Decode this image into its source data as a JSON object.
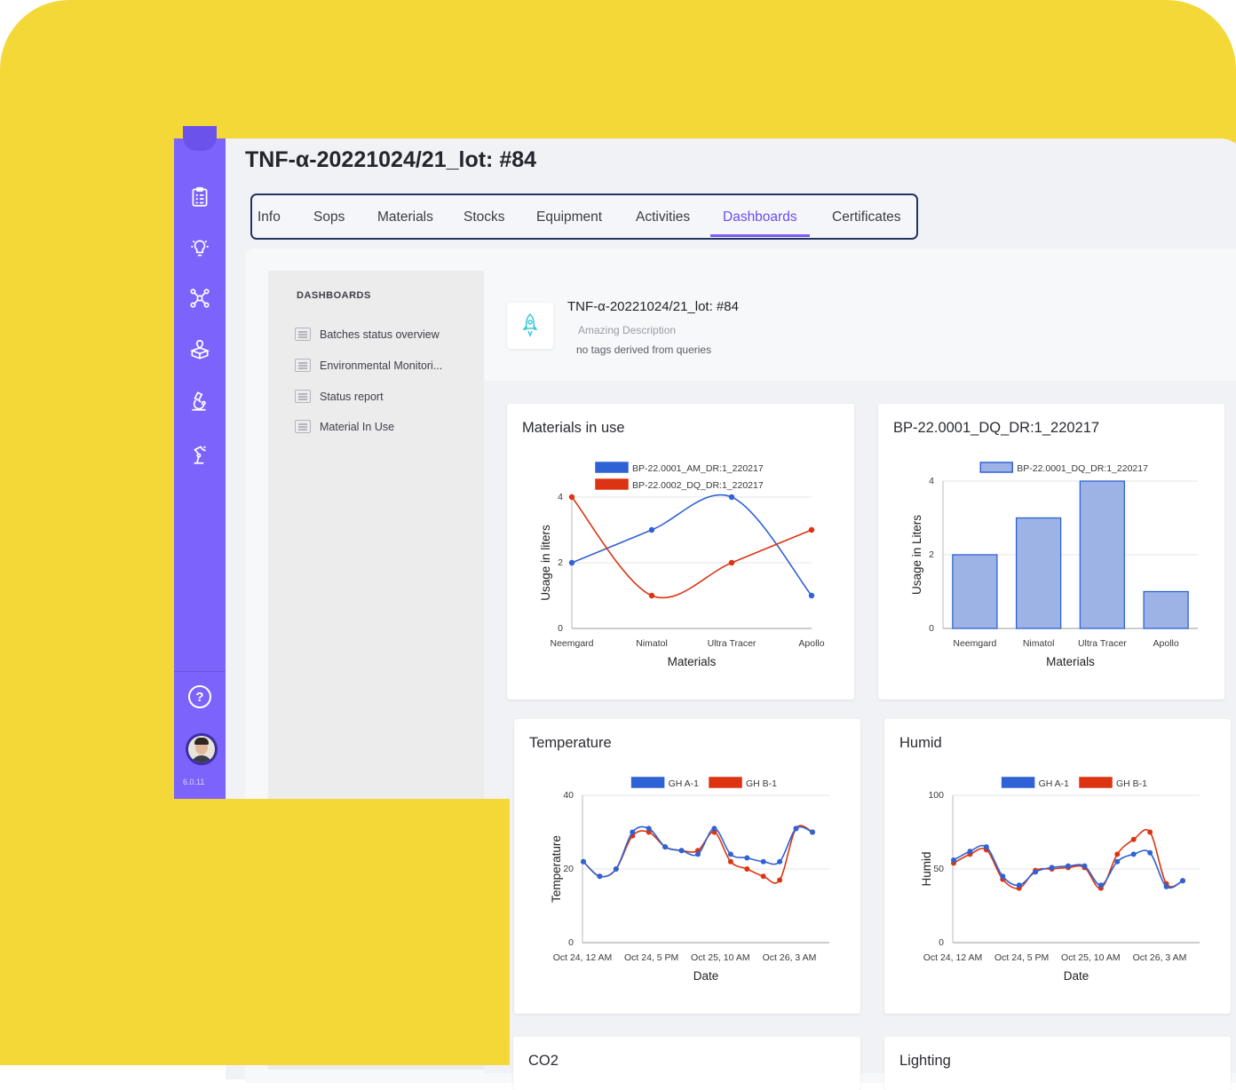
{
  "page": {
    "title": "TNF-α-20221024/21_lot: #84",
    "tabs": [
      {
        "label": "Info"
      },
      {
        "label": "Sops"
      },
      {
        "label": "Materials"
      },
      {
        "label": "Stocks"
      },
      {
        "label": "Equipment"
      },
      {
        "label": "Activities"
      },
      {
        "label": "Dashboards",
        "active": true
      },
      {
        "label": "Certificates"
      }
    ]
  },
  "sidebar": {
    "icons": [
      "clipboard-icon",
      "lightbulb-icon",
      "network-icon",
      "box-location-icon",
      "microscope-icon",
      "robot-arm-icon"
    ],
    "help_label": "?",
    "version": "6.0.11"
  },
  "dashboards_nav": {
    "header": "DASHBOARDS",
    "items": [
      {
        "label": "Batches status overview"
      },
      {
        "label": "Environmental Monitori..."
      },
      {
        "label": "Status report"
      },
      {
        "label": "Material In Use"
      }
    ]
  },
  "board": {
    "title": "TNF-α-20221024/21_lot: #84",
    "description": "Amazing Description",
    "tags": "no tags derived from queries"
  },
  "colors": {
    "accent": "#7b63fb",
    "background": "#f4d838",
    "series_blue": "#2f62d4",
    "series_red": "#dc3412",
    "bar_fill": "#9db3e6"
  },
  "cards": {
    "materials": {
      "title": "Materials in use"
    },
    "bp": {
      "title": "BP-22.0001_DQ_DR:1_220217"
    },
    "temperature": {
      "title": "Temperature"
    },
    "humid": {
      "title": "Humid"
    },
    "co2": {
      "title": "CO2"
    },
    "lighting": {
      "title": "Lighting"
    }
  },
  "chart_data": [
    {
      "type": "line",
      "title": "Materials in use",
      "categories": [
        "Neemgard",
        "Nimatol",
        "Ultra Tracer",
        "Apollo"
      ],
      "series": [
        {
          "name": "BP-22.0001_AM_DR:1_220217",
          "values": [
            2,
            3,
            4,
            1
          ]
        },
        {
          "name": "BP-22.0002_DQ_DR:1_220217",
          "values": [
            4,
            1,
            2,
            3
          ]
        }
      ],
      "xlabel": "Materials",
      "ylabel": "Usage in liters",
      "ylim": [
        0,
        4
      ],
      "yticks": [
        0,
        2,
        4
      ],
      "legend": "top"
    },
    {
      "type": "bar",
      "title": "BP-22.0001_DQ_DR:1_220217",
      "categories": [
        "Neemgard",
        "Nimatol",
        "Ultra Tracer",
        "Apollo"
      ],
      "series": [
        {
          "name": "BP-22.0001_DQ_DR:1_220217",
          "values": [
            2,
            3,
            4,
            1
          ]
        }
      ],
      "xlabel": "Materials",
      "ylabel": "Usage in Liters",
      "ylim": [
        0,
        4
      ],
      "yticks": [
        0,
        2,
        4
      ],
      "legend": "top"
    },
    {
      "type": "line",
      "title": "Temperature",
      "xticks": [
        "Oct 24, 12 AM",
        "Oct 24, 5 PM",
        "Oct 25, 10 AM",
        "Oct 26, 3 AM"
      ],
      "x": [
        "Oct 24, 12 AM",
        "Oct 24, 6 AM",
        "Oct 24, 10 AM",
        "Oct 24, 1 PM",
        "Oct 24, 3 PM",
        "Oct 24, 5 PM",
        "Oct 25, 1 AM",
        "Oct 25, 8 AM",
        "Oct 25, 10 AM",
        "Oct 25, 12 PM",
        "Oct 25, 3 PM",
        "Oct 25, 9 PM",
        "Oct 26, 3 AM",
        "Oct 26, 6 AM",
        "Oct 26, 9 AM"
      ],
      "series": [
        {
          "name": "GH A-1",
          "values": [
            22,
            18,
            20,
            30,
            31,
            26,
            25,
            24,
            31,
            24,
            23,
            22,
            22,
            31,
            30
          ]
        },
        {
          "name": "GH B-1",
          "values": [
            22,
            18,
            20,
            29,
            30,
            26,
            25,
            25,
            30,
            22,
            20,
            18,
            17,
            31,
            30
          ]
        }
      ],
      "xlabel": "Date",
      "ylabel": "Temperature",
      "ylim": [
        0,
        40
      ],
      "yticks": [
        0,
        20,
        40
      ],
      "legend": "top"
    },
    {
      "type": "line",
      "title": "Humid",
      "xticks": [
        "Oct 24, 12 AM",
        "Oct 24, 5 PM",
        "Oct 25, 10 AM",
        "Oct 26, 3 AM"
      ],
      "x": [
        "Oct 24, 12 AM",
        "Oct 24, 6 AM",
        "Oct 24, 10 AM",
        "Oct 24, 1 PM",
        "Oct 24, 3 PM",
        "Oct 24, 5 PM",
        "Oct 25, 1 AM",
        "Oct 25, 8 AM",
        "Oct 25, 10 AM",
        "Oct 25, 12 PM",
        "Oct 25, 3 PM",
        "Oct 25, 9 PM",
        "Oct 26, 3 AM",
        "Oct 26, 6 AM",
        "Oct 26, 9 AM"
      ],
      "series": [
        {
          "name": "GH A-1",
          "values": [
            56,
            62,
            65,
            45,
            39,
            48,
            51,
            52,
            52,
            39,
            55,
            60,
            61,
            38,
            42
          ]
        },
        {
          "name": "GH B-1",
          "values": [
            54,
            60,
            63,
            43,
            37,
            49,
            50,
            51,
            51,
            37,
            60,
            70,
            75,
            40,
            42
          ]
        }
      ],
      "xlabel": "Date",
      "ylabel": "Humid",
      "ylim": [
        0,
        100
      ],
      "yticks": [
        0,
        50,
        100
      ],
      "legend": "top"
    }
  ]
}
